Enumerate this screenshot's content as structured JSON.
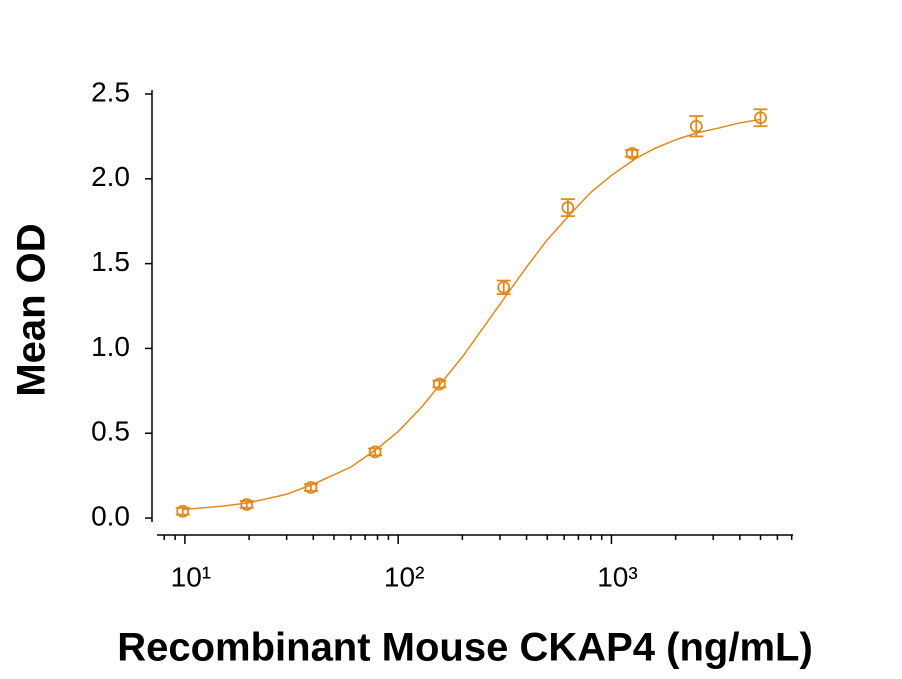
{
  "chart_data": {
    "type": "scatter",
    "x_label": "Recombinant Mouse CKAP4 (ng/mL)",
    "y_label": "Mean OD",
    "x_log": true,
    "color": "#e08a1e",
    "xlim": [
      7.4,
      7100
    ],
    "ylim": [
      -0.1,
      2.5
    ],
    "xticks": [
      {
        "value": 10,
        "label": "10¹"
      },
      {
        "value": 100,
        "label": "10²"
      },
      {
        "value": 1000,
        "label": "10³"
      }
    ],
    "xminor_ticks": [
      8,
      9,
      20,
      30,
      40,
      50,
      60,
      70,
      80,
      90,
      200,
      300,
      400,
      500,
      600,
      700,
      800,
      900,
      2000,
      3000,
      4000,
      5000,
      6000,
      7000
    ],
    "yticks": [
      {
        "value": 0,
        "label": "0.0"
      },
      {
        "value": 0.5,
        "label": "0.5"
      },
      {
        "value": 1,
        "label": "1.0"
      },
      {
        "value": 1.5,
        "label": "1.5"
      },
      {
        "value": 2,
        "label": "2.0"
      },
      {
        "value": 2.5,
        "label": "2.5"
      }
    ],
    "points": {
      "x": [
        9.77,
        19.5,
        39,
        78,
        156,
        312.5,
        625,
        1250,
        2500,
        5000
      ],
      "values": [
        0.04,
        0.08,
        0.18,
        0.39,
        0.79,
        1.36,
        1.83,
        2.15,
        2.31,
        2.36
      ],
      "errors": [
        0.02,
        0.02,
        0.02,
        0.02,
        0.02,
        0.04,
        0.05,
        0.02,
        0.06,
        0.05
      ]
    },
    "fit": {
      "x": [
        9.77,
        15,
        20,
        30,
        40,
        60,
        80,
        100,
        130,
        160,
        200,
        250,
        300,
        400,
        500,
        650,
        800,
        1000,
        1300,
        1600,
        2000,
        2500,
        3200,
        4000,
        5000
      ],
      "values": [
        0.05,
        0.07,
        0.09,
        0.14,
        0.2,
        0.3,
        0.41,
        0.51,
        0.66,
        0.8,
        0.95,
        1.12,
        1.26,
        1.48,
        1.64,
        1.8,
        1.92,
        2.02,
        2.12,
        2.18,
        2.23,
        2.27,
        2.3,
        2.33,
        2.35
      ]
    }
  }
}
